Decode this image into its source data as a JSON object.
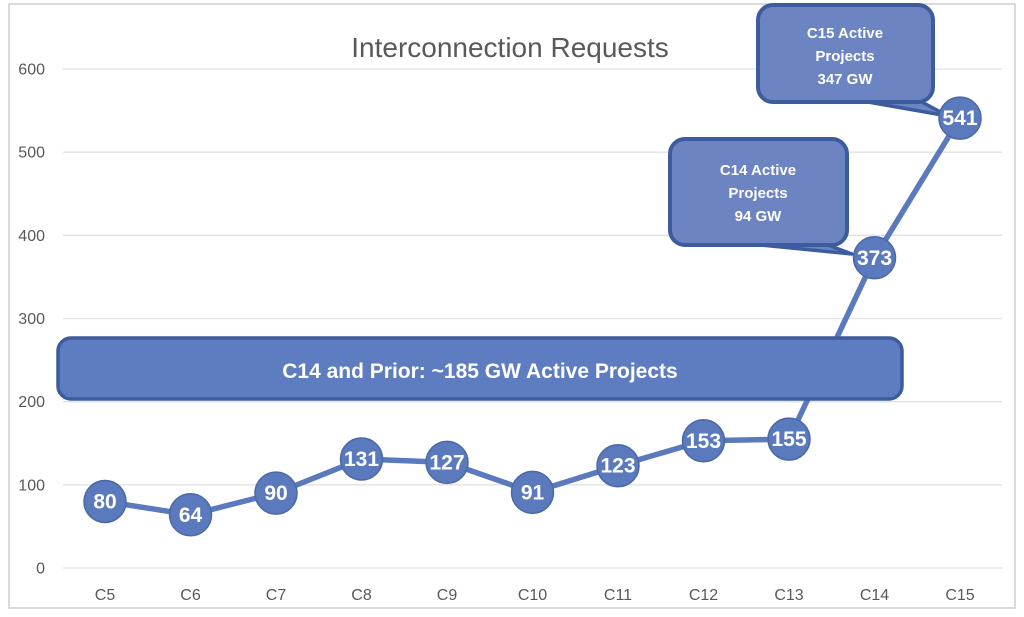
{
  "chart_data": {
    "type": "line",
    "title": "Interconnection Requests",
    "categories": [
      "C5",
      "C6",
      "C7",
      "C8",
      "C9",
      "C10",
      "C11",
      "C12",
      "C13",
      "C14",
      "C15"
    ],
    "values": [
      80,
      64,
      90,
      131,
      127,
      91,
      123,
      153,
      155,
      373,
      541
    ],
    "xlabel": "",
    "ylabel": "",
    "ylim": [
      0,
      600
    ],
    "ytick_step": 100,
    "yticks": [
      0,
      100,
      200,
      300,
      400,
      500,
      600
    ],
    "grid": true,
    "legend": "none",
    "data_labels": "on-marker",
    "annotations": {
      "banner": {
        "text": "C14 and Prior: ~185 GW Active Projects"
      },
      "callouts": [
        {
          "id": "c15",
          "lines": [
            "C15 Active",
            "Projects",
            "347 GW"
          ],
          "target_category": "C15",
          "target_value": 541
        },
        {
          "id": "c14",
          "lines": [
            "C14 Active",
            "Projects",
            "94 GW"
          ],
          "target_category": "C14",
          "target_value": 373
        }
      ]
    },
    "colors": {
      "line": "#5b7abe",
      "marker_fill": "#5b7abe",
      "marker_stroke": "#4a69a4",
      "marker_text": "#ffffff",
      "callout_fill": "#6d84c2",
      "callout_stroke": "#3d5c9e",
      "callout_text": "#ffffff",
      "banner_fill": "#5e7dc1",
      "banner_stroke": "#3d5c9e",
      "banner_text": "#ffffff",
      "title_text": "#595959",
      "axis_text": "#595959",
      "gridline": "#e2e2e2",
      "chart_border": "#cfcfcf"
    }
  }
}
